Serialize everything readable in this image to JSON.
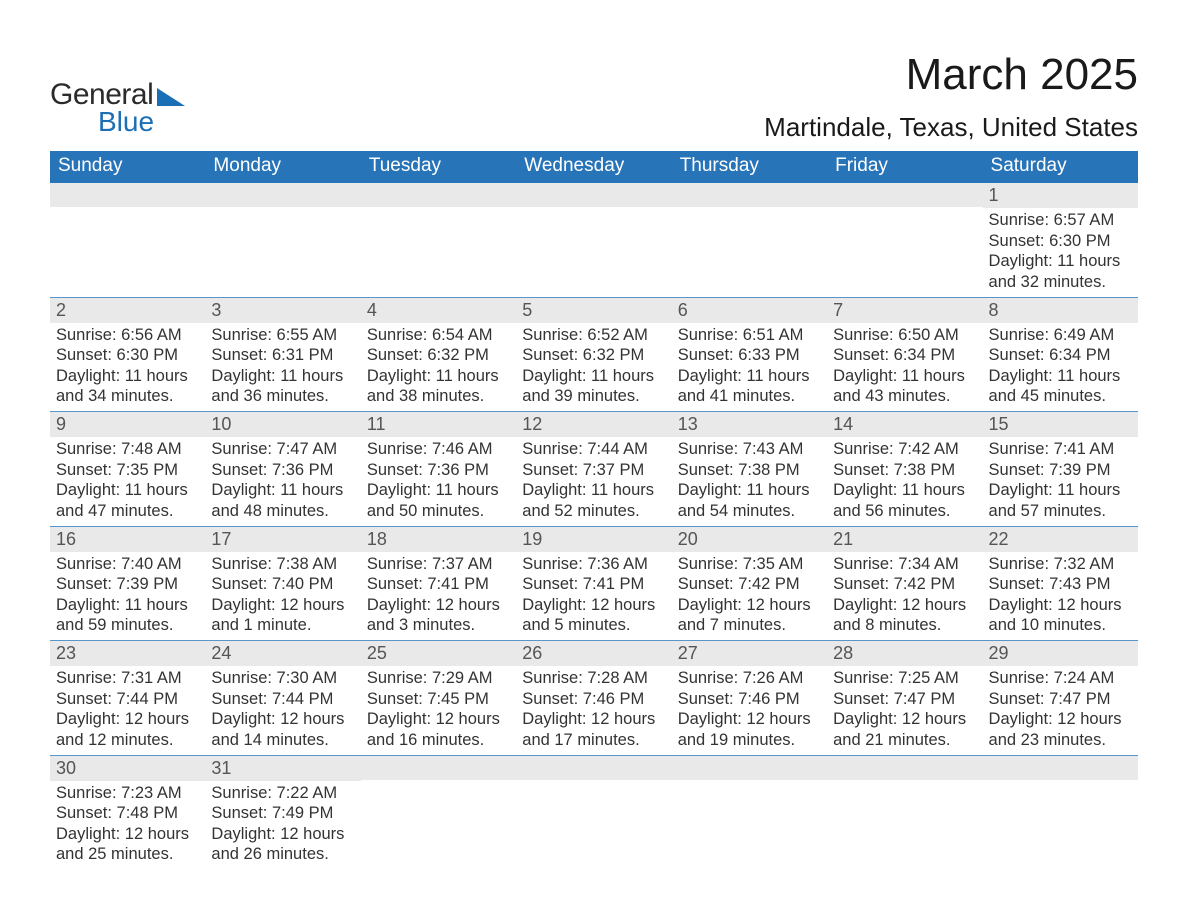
{
  "logo": {
    "word1": "General",
    "word2": "Blue"
  },
  "title": "March 2025",
  "location": "Martindale, Texas, United States",
  "colors": {
    "header_bg": "#2874b8",
    "header_text": "#ffffff",
    "daynum_bg": "#e9e9e9",
    "daynum_text": "#555555",
    "body_text": "#333333",
    "row_border": "#5a95c9",
    "logo_accent": "#1b6fb5",
    "background": "#ffffff"
  },
  "columns": [
    "Sunday",
    "Monday",
    "Tuesday",
    "Wednesday",
    "Thursday",
    "Friday",
    "Saturday"
  ],
  "weeks": [
    [
      null,
      null,
      null,
      null,
      null,
      null,
      {
        "n": "1",
        "sr": "6:57 AM",
        "ss": "6:30 PM",
        "dl": "11 hours and 32 minutes."
      }
    ],
    [
      {
        "n": "2",
        "sr": "6:56 AM",
        "ss": "6:30 PM",
        "dl": "11 hours and 34 minutes."
      },
      {
        "n": "3",
        "sr": "6:55 AM",
        "ss": "6:31 PM",
        "dl": "11 hours and 36 minutes."
      },
      {
        "n": "4",
        "sr": "6:54 AM",
        "ss": "6:32 PM",
        "dl": "11 hours and 38 minutes."
      },
      {
        "n": "5",
        "sr": "6:52 AM",
        "ss": "6:32 PM",
        "dl": "11 hours and 39 minutes."
      },
      {
        "n": "6",
        "sr": "6:51 AM",
        "ss": "6:33 PM",
        "dl": "11 hours and 41 minutes."
      },
      {
        "n": "7",
        "sr": "6:50 AM",
        "ss": "6:34 PM",
        "dl": "11 hours and 43 minutes."
      },
      {
        "n": "8",
        "sr": "6:49 AM",
        "ss": "6:34 PM",
        "dl": "11 hours and 45 minutes."
      }
    ],
    [
      {
        "n": "9",
        "sr": "7:48 AM",
        "ss": "7:35 PM",
        "dl": "11 hours and 47 minutes."
      },
      {
        "n": "10",
        "sr": "7:47 AM",
        "ss": "7:36 PM",
        "dl": "11 hours and 48 minutes."
      },
      {
        "n": "11",
        "sr": "7:46 AM",
        "ss": "7:36 PM",
        "dl": "11 hours and 50 minutes."
      },
      {
        "n": "12",
        "sr": "7:44 AM",
        "ss": "7:37 PM",
        "dl": "11 hours and 52 minutes."
      },
      {
        "n": "13",
        "sr": "7:43 AM",
        "ss": "7:38 PM",
        "dl": "11 hours and 54 minutes."
      },
      {
        "n": "14",
        "sr": "7:42 AM",
        "ss": "7:38 PM",
        "dl": "11 hours and 56 minutes."
      },
      {
        "n": "15",
        "sr": "7:41 AM",
        "ss": "7:39 PM",
        "dl": "11 hours and 57 minutes."
      }
    ],
    [
      {
        "n": "16",
        "sr": "7:40 AM",
        "ss": "7:39 PM",
        "dl": "11 hours and 59 minutes."
      },
      {
        "n": "17",
        "sr": "7:38 AM",
        "ss": "7:40 PM",
        "dl": "12 hours and 1 minute."
      },
      {
        "n": "18",
        "sr": "7:37 AM",
        "ss": "7:41 PM",
        "dl": "12 hours and 3 minutes."
      },
      {
        "n": "19",
        "sr": "7:36 AM",
        "ss": "7:41 PM",
        "dl": "12 hours and 5 minutes."
      },
      {
        "n": "20",
        "sr": "7:35 AM",
        "ss": "7:42 PM",
        "dl": "12 hours and 7 minutes."
      },
      {
        "n": "21",
        "sr": "7:34 AM",
        "ss": "7:42 PM",
        "dl": "12 hours and 8 minutes."
      },
      {
        "n": "22",
        "sr": "7:32 AM",
        "ss": "7:43 PM",
        "dl": "12 hours and 10 minutes."
      }
    ],
    [
      {
        "n": "23",
        "sr": "7:31 AM",
        "ss": "7:44 PM",
        "dl": "12 hours and 12 minutes."
      },
      {
        "n": "24",
        "sr": "7:30 AM",
        "ss": "7:44 PM",
        "dl": "12 hours and 14 minutes."
      },
      {
        "n": "25",
        "sr": "7:29 AM",
        "ss": "7:45 PM",
        "dl": "12 hours and 16 minutes."
      },
      {
        "n": "26",
        "sr": "7:28 AM",
        "ss": "7:46 PM",
        "dl": "12 hours and 17 minutes."
      },
      {
        "n": "27",
        "sr": "7:26 AM",
        "ss": "7:46 PM",
        "dl": "12 hours and 19 minutes."
      },
      {
        "n": "28",
        "sr": "7:25 AM",
        "ss": "7:47 PM",
        "dl": "12 hours and 21 minutes."
      },
      {
        "n": "29",
        "sr": "7:24 AM",
        "ss": "7:47 PM",
        "dl": "12 hours and 23 minutes."
      }
    ],
    [
      {
        "n": "30",
        "sr": "7:23 AM",
        "ss": "7:48 PM",
        "dl": "12 hours and 25 minutes."
      },
      {
        "n": "31",
        "sr": "7:22 AM",
        "ss": "7:49 PM",
        "dl": "12 hours and 26 minutes."
      },
      null,
      null,
      null,
      null,
      null
    ]
  ],
  "labels": {
    "sunrise": "Sunrise:",
    "sunset": "Sunset:",
    "daylight": "Daylight:"
  }
}
